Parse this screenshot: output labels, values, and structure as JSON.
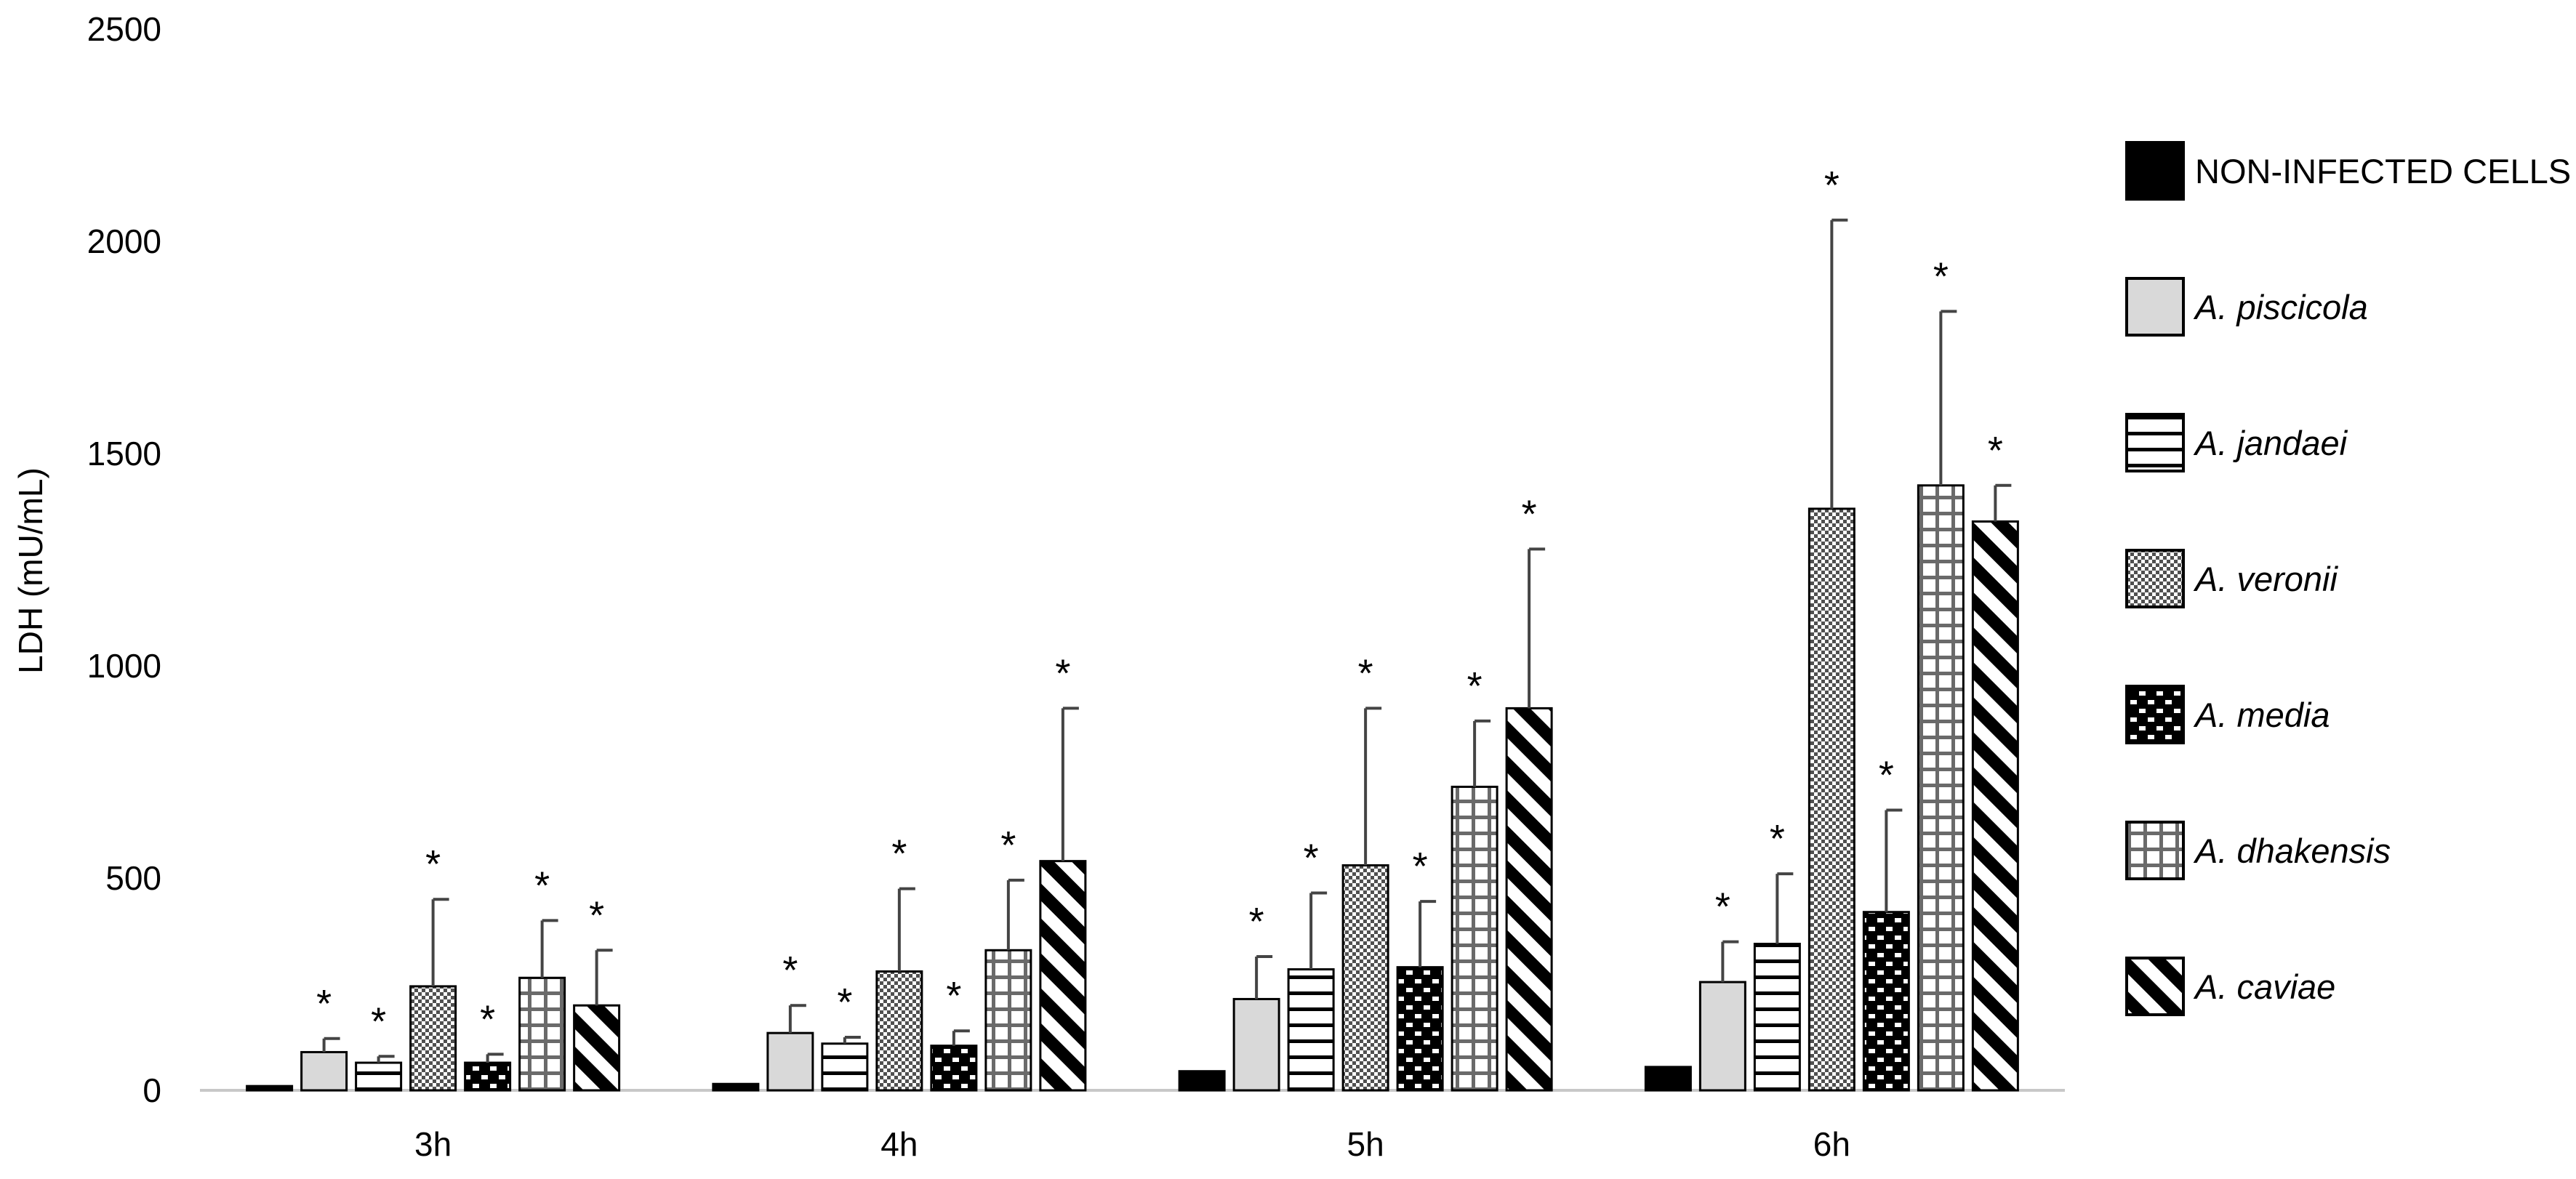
{
  "chart_data": {
    "type": "bar",
    "title": "",
    "xlabel": "",
    "ylabel": "LDH  (mU/mL)",
    "ylim": [
      0,
      2500
    ],
    "yticks": [
      0,
      500,
      1000,
      1500,
      2000,
      2500
    ],
    "grid": false,
    "legend_position": "right",
    "categories": [
      "3h",
      "4h",
      "5h",
      "6h"
    ],
    "significance_marker": "*",
    "series": [
      {
        "name": "NON-INFECTED CELLS",
        "italic": false,
        "pattern": "solid-black",
        "values": [
          10,
          15,
          45,
          55
        ],
        "errors": [
          0,
          0,
          0,
          0
        ],
        "significant": [
          false,
          false,
          false,
          false
        ]
      },
      {
        "name": "A. piscicola",
        "italic": true,
        "pattern": "light-gray",
        "values": [
          90,
          135,
          215,
          255
        ],
        "errors": [
          32,
          65,
          100,
          95
        ],
        "significant": [
          true,
          true,
          true,
          true
        ]
      },
      {
        "name": "A. jandaei",
        "italic": true,
        "pattern": "horizontal-lines",
        "values": [
          65,
          110,
          285,
          345
        ],
        "errors": [
          15,
          15,
          180,
          165
        ],
        "significant": [
          true,
          true,
          true,
          true
        ]
      },
      {
        "name": "A. veronii",
        "italic": true,
        "pattern": "checkered",
        "values": [
          245,
          280,
          530,
          1370
        ],
        "errors": [
          205,
          195,
          370,
          680
        ],
        "significant": [
          true,
          true,
          true,
          true
        ]
      },
      {
        "name": "A. media",
        "italic": true,
        "pattern": "black-brick",
        "values": [
          65,
          105,
          290,
          420
        ],
        "errors": [
          20,
          35,
          155,
          240
        ],
        "significant": [
          true,
          true,
          true,
          true
        ]
      },
      {
        "name": "A. dhakensis",
        "italic": true,
        "pattern": "grid",
        "values": [
          265,
          330,
          715,
          1425
        ],
        "errors": [
          135,
          165,
          155,
          410
        ],
        "significant": [
          true,
          true,
          true,
          true
        ]
      },
      {
        "name": "A. caviae",
        "italic": true,
        "pattern": "diagonal-stripes",
        "values": [
          200,
          540,
          900,
          1340
        ],
        "errors": [
          130,
          360,
          375,
          85
        ],
        "significant": [
          true,
          true,
          true,
          true
        ]
      }
    ]
  }
}
